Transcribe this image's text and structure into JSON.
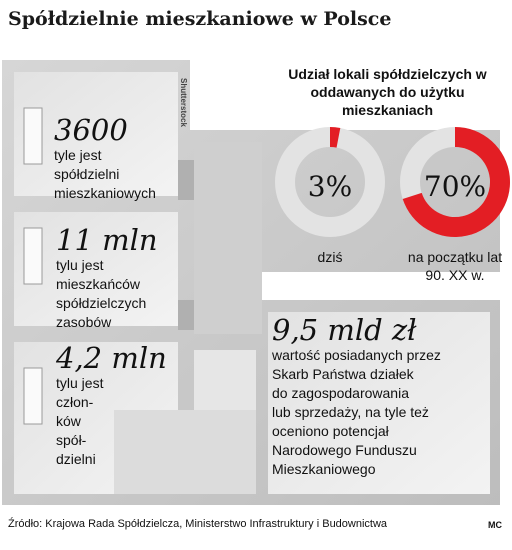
{
  "title": "Spółdzielnie mieszkaniowe w Polsce",
  "image_credit": "Shutterstock",
  "stats": [
    {
      "value": "3600",
      "description": [
        "tyle jest",
        "spółdzielni",
        "mieszkaniowych"
      ]
    },
    {
      "value": "11 mln",
      "description": [
        "tylu jest",
        "mieszkańców",
        "spółdzielczych",
        "zasobów"
      ]
    },
    {
      "value": "4,2 mln",
      "description": [
        "tylu jest",
        "człon-",
        "ków",
        "spół-",
        "dzielni"
      ]
    },
    {
      "value": "9,5 mld zł",
      "description": [
        "wartość posiadanych przez",
        "Skarb Państwa działek",
        "do zagospodarowania",
        "lub sprzedaży, na tyle też",
        "oceniono potencjał",
        "Narodowego Funduszu",
        "Mieszkaniowego"
      ]
    }
  ],
  "chart_data": {
    "type": "pie",
    "title": "Udział lokali spółdzielczych w oddawanych do użytku mieszkaniach",
    "slices": [
      {
        "label": "dziś",
        "value": 3,
        "display": "3%"
      },
      {
        "label": "na początku lat 90. XX w.",
        "value": 70,
        "display": "70%"
      }
    ],
    "colors": {
      "filled": "#e31e24",
      "remainder": "#e3e3e3"
    }
  },
  "source": "Źródło: Krajowa Rada Spółdzielcza, Ministerstwo Infrastruktury i Budownictwa",
  "author": "MC"
}
